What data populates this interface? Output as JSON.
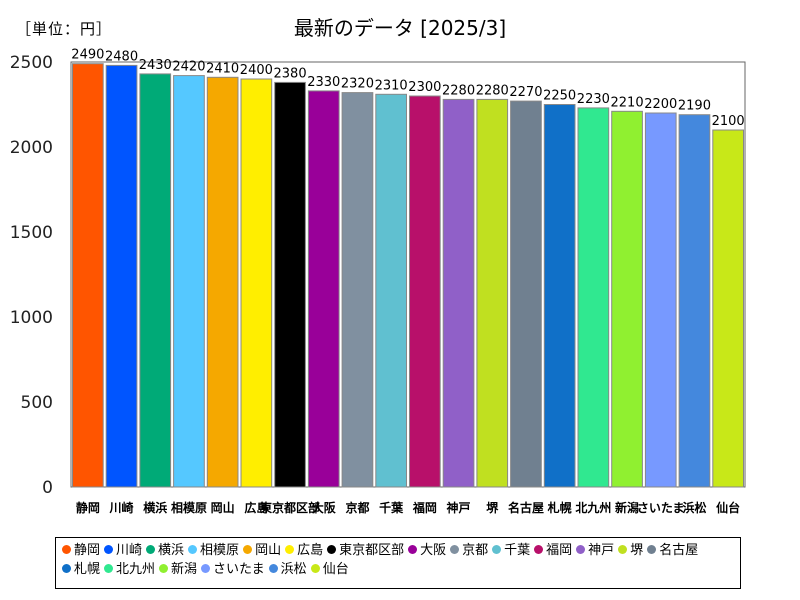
{
  "unit_label": "［単位：円］",
  "chart_data": {
    "type": "bar",
    "title": "最新のデータ [2025/3]",
    "xlabel": "",
    "ylabel": "",
    "ylim": [
      0,
      2500
    ],
    "yticks": [
      0,
      500,
      1000,
      1500,
      2000,
      2500
    ],
    "grid": false,
    "legend_position": "bottom",
    "categories": [
      "静岡",
      "川崎",
      "横浜",
      "相模原",
      "岡山",
      "広島",
      "東京都区部",
      "大阪",
      "京都",
      "千葉",
      "福岡",
      "神戸",
      "堺",
      "名古屋",
      "札幌",
      "北九州",
      "新潟",
      "さいたま",
      "浜松",
      "仙台"
    ],
    "values": [
      2490,
      2480,
      2430,
      2420,
      2410,
      2400,
      2380,
      2330,
      2320,
      2310,
      2300,
      2280,
      2280,
      2270,
      2250,
      2230,
      2210,
      2200,
      2190,
      2100
    ],
    "colors": [
      "#ff5500",
      "#0055ff",
      "#00aa77",
      "#55c8ff",
      "#f5a800",
      "#ffee00",
      "#000000",
      "#990099",
      "#8090a0",
      "#60c0d0",
      "#b8106a",
      "#9060c8",
      "#c0e020",
      "#708090",
      "#1070c8",
      "#30e890",
      "#90f030",
      "#7799ff",
      "#4488dd",
      "#c8e818"
    ]
  }
}
